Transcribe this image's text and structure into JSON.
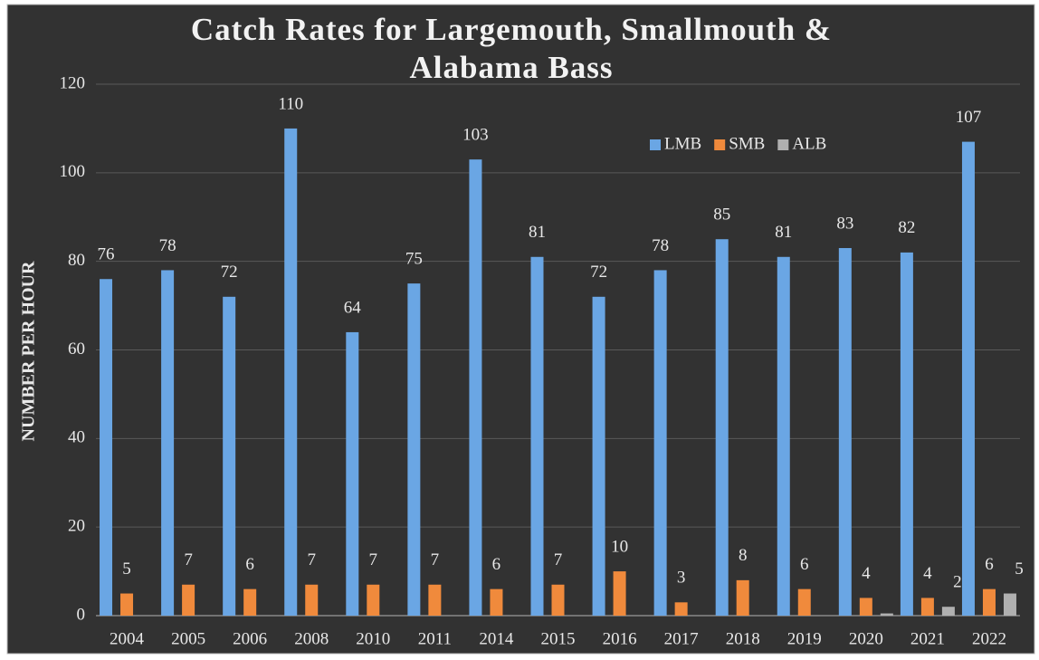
{
  "chart_data": {
    "type": "bar",
    "title": "Catch Rates for Largemouth, Smallmouth & Alabama Bass",
    "y_label": "NUMBER PER HOUR",
    "categories": [
      "2004",
      "2005",
      "2006",
      "2008",
      "2010",
      "2011",
      "2014",
      "2015",
      "2016",
      "2017",
      "2018",
      "2019",
      "2020",
      "2021",
      "2022"
    ],
    "series": [
      {
        "name": "LMB",
        "color": "#6aa6e4",
        "values": [
          76,
          78,
          72,
          110,
          64,
          75,
          103,
          81,
          72,
          78,
          85,
          81,
          83,
          82,
          107
        ]
      },
      {
        "name": "SMB",
        "color": "#f08a3c",
        "values": [
          5,
          7,
          6,
          7,
          7,
          7,
          6,
          7,
          10,
          3,
          8,
          6,
          4,
          4,
          6
        ]
      },
      {
        "name": "ALB",
        "color": "#b0b0b0",
        "values": [
          null,
          null,
          null,
          null,
          null,
          null,
          null,
          null,
          null,
          null,
          null,
          null,
          0.5,
          2,
          5
        ],
        "value_labels": [
          null,
          null,
          null,
          null,
          null,
          null,
          null,
          null,
          null,
          null,
          null,
          null,
          null,
          "2",
          "5"
        ]
      }
    ],
    "ylim": [
      0,
      120
    ],
    "yticks": [
      0,
      20,
      40,
      60,
      80,
      100,
      120
    ],
    "grid": true,
    "legend": "top-right"
  }
}
